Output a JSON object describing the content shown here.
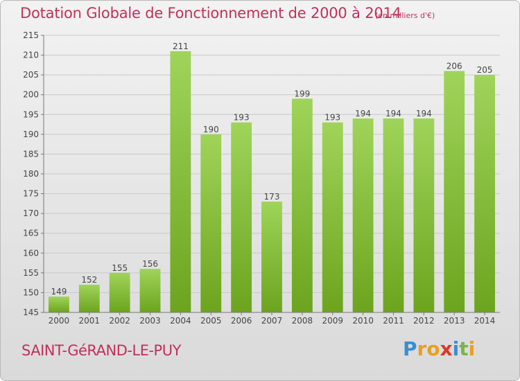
{
  "header": {
    "title": "Dotation Globale de Fonctionnement de 2000 à 2014",
    "subtitle": "(en milliers d'€)"
  },
  "footer": {
    "municipality": "SAINT-GéRAND-LE-PUY",
    "logo_text": "Proxiti",
    "logo_letters": [
      {
        "ch": "P",
        "color": "#3a8fd0"
      },
      {
        "ch": "r",
        "color": "#e8a020"
      },
      {
        "ch": "o",
        "color": "#e8a020"
      },
      {
        "ch": "x",
        "color": "#d93a2a"
      },
      {
        "ch": "i",
        "color": "#3a8fd0"
      },
      {
        "ch": "t",
        "color": "#7ab648"
      },
      {
        "ch": "i",
        "color": "#e8a020"
      }
    ]
  },
  "colors": {
    "accent": "#c0305a",
    "bar_top": "#9fd45a",
    "bar_bottom": "#6ca41e"
  },
  "chart_data": {
    "type": "bar",
    "title": "Dotation Globale de Fonctionnement de 2000 à 2014",
    "subtitle": "(en milliers d'€)",
    "categories": [
      "2000",
      "2001",
      "2002",
      "2003",
      "2004",
      "2005",
      "2006",
      "2007",
      "2008",
      "2009",
      "2010",
      "2011",
      "2012",
      "2013",
      "2014"
    ],
    "values": [
      149,
      152,
      155,
      156,
      211,
      190,
      193,
      173,
      199,
      193,
      194,
      194,
      194,
      206,
      205
    ],
    "ylim": [
      145,
      215
    ],
    "yticks": [
      145,
      150,
      155,
      160,
      165,
      170,
      175,
      180,
      185,
      190,
      195,
      200,
      205,
      210,
      215
    ],
    "grid": true,
    "legend": "none"
  }
}
